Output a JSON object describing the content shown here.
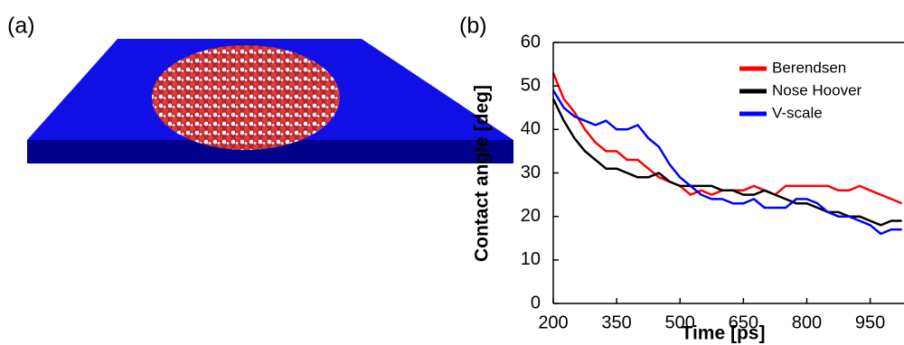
{
  "panels": [
    "(a)",
    "(b)"
  ],
  "chart_data": {
    "type": "line",
    "x_label": "Time [ps]",
    "y_label": "Contact angle [deg]",
    "x": [
      200,
      225,
      250,
      275,
      300,
      325,
      350,
      375,
      400,
      425,
      450,
      475,
      500,
      525,
      550,
      575,
      600,
      625,
      650,
      675,
      700,
      725,
      750,
      775,
      800,
      825,
      850,
      875,
      900,
      925,
      950,
      975,
      1000,
      1025
    ],
    "series": [
      {
        "name": "Berendsen",
        "color": "#ff0000",
        "values": [
          53,
          47,
          44,
          40,
          37,
          35,
          35,
          33,
          33,
          31,
          29,
          28,
          27,
          25,
          26,
          25,
          26,
          26,
          26,
          27,
          26,
          25,
          27,
          27,
          27,
          27,
          27,
          26,
          26,
          27,
          26,
          25,
          24,
          23
        ]
      },
      {
        "name": "Nose Hoover",
        "color": "#000000",
        "values": [
          47,
          42,
          38,
          35,
          33,
          31,
          31,
          30,
          29,
          29,
          30,
          28,
          27,
          27,
          27,
          27,
          26,
          26,
          25,
          25,
          26,
          25,
          24,
          23,
          23,
          22,
          21,
          21,
          20,
          20,
          19,
          18,
          19,
          19
        ]
      },
      {
        "name": "V-scale",
        "color": "#0000ff",
        "values": [
          49,
          45,
          43,
          42,
          41,
          42,
          40,
          40,
          41,
          38,
          36,
          32,
          29,
          27,
          25,
          24,
          24,
          23,
          23,
          24,
          22,
          22,
          22,
          24,
          24,
          23,
          21,
          20,
          20,
          19,
          18,
          16,
          17,
          17
        ]
      }
    ],
    "xlim": [
      200,
      1030
    ],
    "ylim": [
      0,
      60
    ],
    "xticks": [
      200,
      350,
      500,
      650,
      800,
      950
    ],
    "yticks": [
      0,
      10,
      20,
      30,
      40,
      50,
      60
    ],
    "legend": "upper right"
  }
}
